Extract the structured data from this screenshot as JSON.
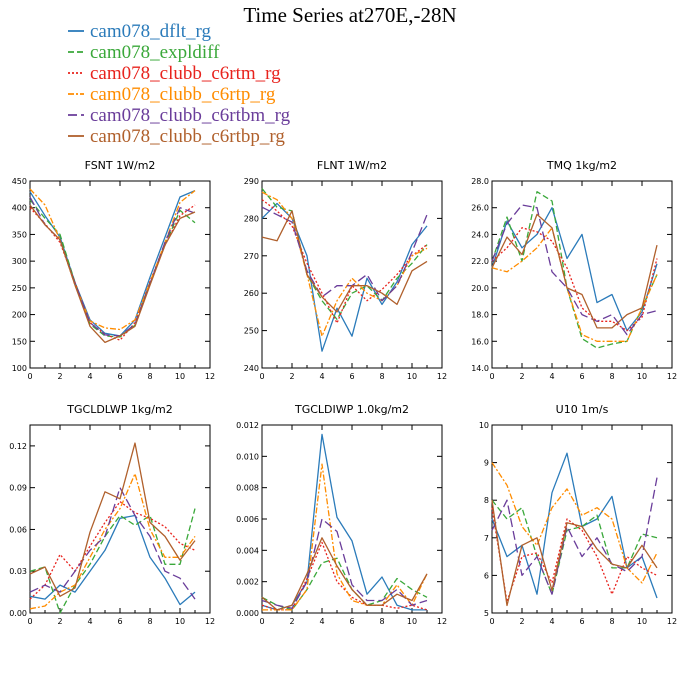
{
  "figure": {
    "title": "Time Series at270E,-28N"
  },
  "legend": [
    {
      "name": "cam078_dflt_rg",
      "color": "#2b7bba",
      "dash": "solid"
    },
    {
      "name": "cam078_expldiff",
      "color": "#3aa83a",
      "dash": "dash"
    },
    {
      "name": "cam078_clubb_c6rtm_rg",
      "color": "#e8231d",
      "dash": "dot"
    },
    {
      "name": "cam078_clubb_c6rtp_rg",
      "color": "#ff8c00",
      "dash": "dashdot"
    },
    {
      "name": "cam078_clubb_c6rtbm_rg",
      "color": "#6a3d9a",
      "dash": "longdash"
    },
    {
      "name": "cam078_clubb_c6rtbp_rg",
      "color": "#b0602c",
      "dash": "solid"
    }
  ],
  "chart_data": [
    {
      "type": "line",
      "title": "FSNT   1W/m2",
      "xlim": [
        0,
        12
      ],
      "ylim": [
        100,
        450
      ],
      "xticks": [
        0,
        2,
        4,
        6,
        8,
        10,
        12
      ],
      "yticks": [
        100,
        150,
        200,
        250,
        300,
        350,
        400,
        450
      ],
      "ytick_labels": [
        "100",
        "150",
        "200",
        "250",
        "300",
        "350",
        "400",
        "450"
      ],
      "x": [
        0,
        1,
        2,
        3,
        4,
        5,
        6,
        7,
        8,
        9,
        10,
        11
      ],
      "series": [
        {
          "values": [
            430,
            385,
            345,
            260,
            190,
            165,
            160,
            190,
            270,
            345,
            420,
            432
          ]
        },
        {
          "values": [
            415,
            380,
            350,
            260,
            182,
            160,
            158,
            180,
            260,
            330,
            395,
            372
          ]
        },
        {
          "values": [
            400,
            370,
            335,
            260,
            185,
            163,
            152,
            185,
            262,
            330,
            385,
            405
          ]
        },
        {
          "values": [
            435,
            405,
            340,
            255,
            188,
            175,
            172,
            190,
            260,
            335,
            410,
            432
          ]
        },
        {
          "values": [
            420,
            368,
            340,
            258,
            185,
            162,
            160,
            182,
            258,
            335,
            400,
            390
          ]
        },
        {
          "values": [
            405,
            368,
            340,
            255,
            178,
            148,
            160,
            178,
            255,
            330,
            380,
            392
          ]
        }
      ]
    },
    {
      "type": "line",
      "title": "FLNT   1W/m2",
      "xlim": [
        0,
        12
      ],
      "ylim": [
        240,
        290
      ],
      "xticks": [
        0,
        2,
        4,
        6,
        8,
        10,
        12
      ],
      "yticks": [
        240,
        250,
        260,
        270,
        280,
        290
      ],
      "ytick_labels": [
        "240",
        "250",
        "260",
        "270",
        "280",
        "290"
      ],
      "x": [
        0,
        1,
        2,
        3,
        4,
        5,
        6,
        7,
        8,
        9,
        10,
        11
      ],
      "series": [
        {
          "values": [
            280,
            284,
            280,
            270,
            244.5,
            256,
            248.5,
            264,
            257,
            263,
            273,
            278
          ]
        },
        {
          "values": [
            288,
            283,
            282,
            265,
            258,
            253,
            260,
            262,
            258,
            264,
            268,
            273
          ]
        },
        {
          "values": [
            285,
            282,
            278,
            268,
            260,
            252,
            262,
            258,
            261,
            265,
            270,
            273
          ]
        },
        {
          "values": [
            287,
            285,
            280,
            265,
            248.5,
            258,
            264,
            260,
            258,
            262,
            270,
            272
          ]
        },
        {
          "values": [
            283,
            281,
            279,
            266,
            259,
            262,
            262,
            265,
            258,
            262,
            271,
            281
          ]
        },
        {
          "values": [
            275,
            274,
            282,
            265,
            259,
            255,
            262,
            262,
            260,
            257,
            266,
            268.5
          ]
        }
      ]
    },
    {
      "type": "line",
      "title": "TMQ   1kg/m2",
      "xlim": [
        0,
        12
      ],
      "ylim": [
        14,
        28
      ],
      "xticks": [
        0,
        2,
        4,
        6,
        8,
        10,
        12
      ],
      "yticks": [
        14,
        16,
        18,
        20,
        22,
        24,
        26,
        28
      ],
      "ytick_labels": [
        "14.0",
        "16.0",
        "18.0",
        "20.0",
        "22.0",
        "24.0",
        "26.0",
        "28.0"
      ],
      "x": [
        0,
        1,
        2,
        3,
        4,
        5,
        6,
        7,
        8,
        9,
        10,
        11
      ],
      "series": [
        {
          "values": [
            21.5,
            25,
            23,
            24,
            26,
            22.2,
            24,
            18.9,
            19.5,
            16.8,
            18.2,
            21.8
          ]
        },
        {
          "values": [
            22,
            25.3,
            22,
            27.2,
            26.5,
            20,
            16.2,
            15.5,
            15.8,
            16,
            18.5,
            21
          ]
        },
        {
          "values": [
            22,
            23,
            24.5,
            24.2,
            23.5,
            21.5,
            18.5,
            17.5,
            17.5,
            16.8,
            17.8,
            22.2
          ]
        },
        {
          "values": [
            21.5,
            21.2,
            22,
            23,
            24.5,
            20,
            16.5,
            16,
            16,
            16,
            18.5,
            21
          ]
        },
        {
          "values": [
            22,
            24.8,
            26.2,
            26,
            21.2,
            20,
            18,
            17.5,
            18,
            16.5,
            18,
            18.3
          ]
        },
        {
          "values": [
            21.5,
            23.8,
            22.5,
            25.5,
            24.5,
            20,
            19.5,
            17,
            17,
            18,
            18.5,
            23.2
          ]
        }
      ]
    },
    {
      "type": "line",
      "title": "TGCLDLWP   1kg/m2",
      "xlim": [
        0,
        12
      ],
      "ylim": [
        0,
        0.135
      ],
      "xticks": [
        0,
        2,
        4,
        6,
        8,
        10,
        12
      ],
      "yticks": [
        0,
        0.03,
        0.06,
        0.09,
        0.12
      ],
      "ytick_labels": [
        "0.00",
        "0.03",
        "0.06",
        "0.09",
        "0.12"
      ],
      "x": [
        0,
        1,
        2,
        3,
        4,
        5,
        6,
        7,
        8,
        9,
        10,
        11
      ],
      "series": [
        {
          "values": [
            0.012,
            0.01,
            0.02,
            0.015,
            0.03,
            0.045,
            0.068,
            0.07,
            0.04,
            0.025,
            0.006,
            0.015
          ]
        },
        {
          "values": [
            0.03,
            0.033,
            0.0,
            0.02,
            0.035,
            0.055,
            0.07,
            0.063,
            0.07,
            0.035,
            0.035,
            0.075
          ]
        },
        {
          "values": [
            0.01,
            0.02,
            0.042,
            0.03,
            0.048,
            0.065,
            0.08,
            0.072,
            0.068,
            0.062,
            0.05,
            0.045
          ]
        },
        {
          "values": [
            0.003,
            0.005,
            0.015,
            0.02,
            0.04,
            0.06,
            0.075,
            0.1,
            0.06,
            0.04,
            0.04,
            0.055
          ]
        },
        {
          "values": [
            0.015,
            0.02,
            0.015,
            0.03,
            0.045,
            0.055,
            0.09,
            0.07,
            0.055,
            0.03,
            0.025,
            0.01
          ]
        },
        {
          "values": [
            0.028,
            0.033,
            0.012,
            0.018,
            0.058,
            0.087,
            0.082,
            0.122,
            0.065,
            0.055,
            0.038,
            0.052
          ]
        }
      ]
    },
    {
      "type": "line",
      "title": "TGCLDIWP   1.0kg/m2",
      "xlim": [
        0,
        12
      ],
      "ylim": [
        0,
        0.012
      ],
      "xticks": [
        0,
        2,
        4,
        6,
        8,
        10,
        12
      ],
      "yticks": [
        0,
        0.002,
        0.004,
        0.006,
        0.008,
        0.01,
        0.012
      ],
      "ytick_labels": [
        "0.000",
        "0.002",
        "0.004",
        "0.006",
        "0.008",
        "0.010",
        "0.012"
      ],
      "x": [
        0,
        1,
        2,
        3,
        4,
        5,
        6,
        7,
        8,
        9,
        10,
        11
      ],
      "series": [
        {
          "values": [
            0.0005,
            0.0002,
            0.0005,
            0.002,
            0.0114,
            0.0061,
            0.0046,
            0.0012,
            0.0023,
            0.0005,
            0.0002,
            0.0002
          ]
        },
        {
          "values": [
            0.001,
            0.0005,
            0.0002,
            0.0015,
            0.0032,
            0.0035,
            0.0015,
            0.0005,
            0.0008,
            0.0022,
            0.0015,
            0.001
          ]
        },
        {
          "values": [
            0.0005,
            0.0002,
            0.0002,
            0.0022,
            0.0045,
            0.002,
            0.001,
            0.0005,
            0.0005,
            0.0003,
            0.0005,
            0.0002
          ]
        },
        {
          "values": [
            0.0002,
            0.0002,
            0.0002,
            0.0015,
            0.0095,
            0.0025,
            0.0008,
            0.0005,
            0.0005,
            0.0018,
            0.0005,
            0.0025
          ]
        },
        {
          "values": [
            0.0008,
            0.0005,
            0.0003,
            0.002,
            0.006,
            0.0052,
            0.0018,
            0.0008,
            0.0008,
            0.0015,
            0.0005,
            0.0008
          ]
        },
        {
          "values": [
            0.001,
            0.0002,
            0.0005,
            0.0025,
            0.0048,
            0.003,
            0.0015,
            0.0005,
            0.0005,
            0.0012,
            0.0008,
            0.0025
          ]
        }
      ]
    },
    {
      "type": "line",
      "title": "U10   1m/s",
      "xlim": [
        0,
        12
      ],
      "ylim": [
        5,
        10
      ],
      "xticks": [
        0,
        2,
        4,
        6,
        8,
        10,
        12
      ],
      "yticks": [
        5,
        6,
        7,
        8,
        9,
        10
      ],
      "ytick_labels": [
        "5",
        "6",
        "7",
        "8",
        "9",
        "10"
      ],
      "x": [
        0,
        1,
        2,
        3,
        4,
        5,
        6,
        7,
        8,
        9,
        10,
        11
      ],
      "series": [
        {
          "values": [
            7.5,
            6.5,
            6.8,
            5.5,
            8.2,
            9.25,
            7.3,
            7.5,
            8.1,
            6.2,
            6.5,
            5.4
          ]
        },
        {
          "values": [
            8,
            7.5,
            7.8,
            6.5,
            5.5,
            7.2,
            7.3,
            7.6,
            6.2,
            6.2,
            7.1,
            7
          ]
        },
        {
          "values": [
            7.8,
            5.3,
            6.5,
            6.6,
            5.8,
            7.5,
            7.2,
            6.5,
            5.5,
            6.5,
            6.2,
            6
          ]
        },
        {
          "values": [
            9,
            8.4,
            7.3,
            6.8,
            7.8,
            8.3,
            7.6,
            7.8,
            7.5,
            6.2,
            5.8,
            6.6
          ]
        },
        {
          "values": [
            7.2,
            8,
            6,
            6.5,
            5.5,
            7.3,
            6.5,
            7,
            6.3,
            6.1,
            6.5,
            8.6
          ]
        },
        {
          "values": [
            8,
            5.2,
            6.8,
            7,
            5.6,
            7.4,
            7.3,
            6.7,
            6.3,
            6.2,
            6.8,
            6.2
          ]
        }
      ]
    }
  ]
}
